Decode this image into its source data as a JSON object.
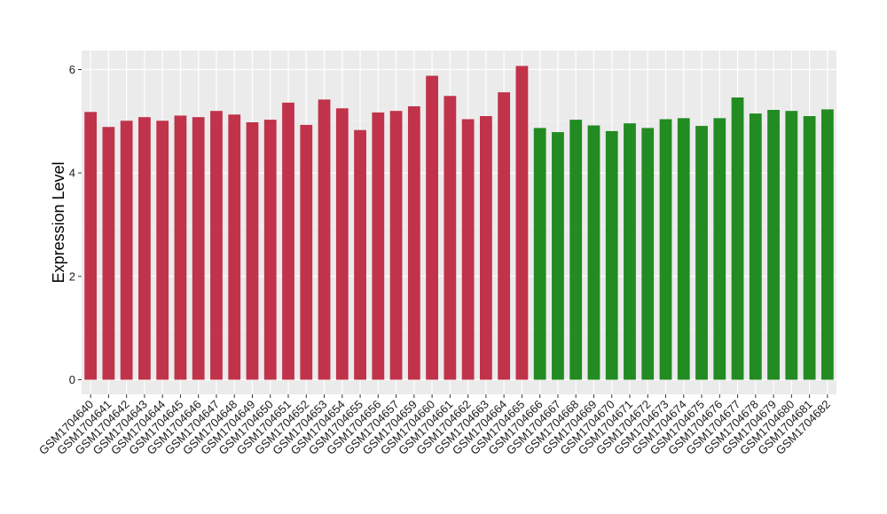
{
  "chart_data": {
    "type": "bar",
    "title": "",
    "xlabel": "",
    "ylabel": "Expression Level",
    "ylim": [
      0,
      6.3
    ],
    "yticks": [
      0,
      2,
      4,
      6
    ],
    "grid": true,
    "panel_background": "#ebebeb",
    "grid_color": "#ffffff",
    "categories": [
      "GSM1704640",
      "GSM1704641",
      "GSM1704642",
      "GSM1704643",
      "GSM1704644",
      "GSM1704645",
      "GSM1704646",
      "GSM1704647",
      "GSM1704648",
      "GSM1704649",
      "GSM1704650",
      "GSM1704651",
      "GSM1704652",
      "GSM1704653",
      "GSM1704654",
      "GSM1704655",
      "GSM1704656",
      "GSM1704657",
      "GSM1704659",
      "GSM1704660",
      "GSM1704661",
      "GSM1704662",
      "GSM1704663",
      "GSM1704664",
      "GSM1704665",
      "GSM1704666",
      "GSM1704667",
      "GSM1704668",
      "GSM1704669",
      "GSM1704670",
      "GSM1704671",
      "GSM1704672",
      "GSM1704673",
      "GSM1704674",
      "GSM1704675",
      "GSM1704676",
      "GSM1704677",
      "GSM1704678",
      "GSM1704679",
      "GSM1704680",
      "GSM1704681",
      "GSM1704682"
    ],
    "values": [
      5.18,
      4.89,
      5.01,
      5.08,
      5.01,
      5.11,
      5.08,
      5.2,
      5.13,
      4.98,
      5.03,
      5.36,
      4.93,
      5.42,
      5.25,
      4.83,
      5.17,
      5.2,
      5.29,
      5.88,
      5.49,
      5.04,
      5.1,
      5.56,
      6.07,
      4.87,
      4.79,
      5.03,
      4.92,
      4.81,
      4.96,
      4.87,
      5.04,
      5.06,
      4.91,
      5.06,
      5.46,
      5.15,
      5.22,
      5.2,
      5.1,
      5.23
    ],
    "colors": [
      "#c0334a",
      "#c0334a",
      "#c0334a",
      "#c0334a",
      "#c0334a",
      "#c0334a",
      "#c0334a",
      "#c0334a",
      "#c0334a",
      "#c0334a",
      "#c0334a",
      "#c0334a",
      "#c0334a",
      "#c0334a",
      "#c0334a",
      "#c0334a",
      "#c0334a",
      "#c0334a",
      "#c0334a",
      "#c0334a",
      "#c0334a",
      "#c0334a",
      "#c0334a",
      "#c0334a",
      "#c0334a",
      "#228b22",
      "#228b22",
      "#228b22",
      "#228b22",
      "#228b22",
      "#228b22",
      "#228b22",
      "#228b22",
      "#228b22",
      "#228b22",
      "#228b22",
      "#228b22",
      "#228b22",
      "#228b22",
      "#228b22",
      "#228b22",
      "#228b22"
    ]
  }
}
